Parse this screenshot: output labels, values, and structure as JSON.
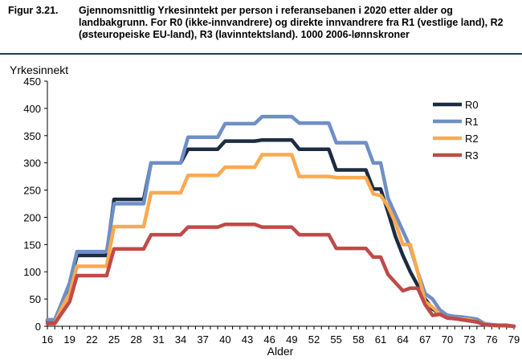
{
  "figure": {
    "number": "Figur 3.21.",
    "title": "Gjennomsnittlig Yrkesinntekt per person i referansebanen i 2020 etter alder og landbakgrunn. For R0 (ikke-innvandrere) og direkte innvandrere fra R1 (vestlige land), R2 (østeuropeiske EU-land), R3 (lavinntektsland). 1000 2006-lønnskroner"
  },
  "chart_data": {
    "type": "line",
    "title": "",
    "xlabel": "Alder",
    "ylabel": "Yrkesinnekt",
    "xlim": [
      16,
      79
    ],
    "ylim": [
      0,
      450
    ],
    "xticks": [
      16,
      19,
      22,
      25,
      28,
      31,
      34,
      37,
      40,
      43,
      46,
      49,
      52,
      55,
      58,
      61,
      64,
      67,
      70,
      73,
      76,
      79
    ],
    "yticks": [
      0,
      50,
      100,
      150,
      200,
      250,
      300,
      350,
      400,
      450
    ],
    "x": [
      16,
      17,
      18,
      19,
      20,
      21,
      22,
      23,
      24,
      25,
      26,
      27,
      28,
      29,
      30,
      31,
      32,
      33,
      34,
      35,
      36,
      37,
      38,
      39,
      40,
      41,
      42,
      43,
      44,
      45,
      46,
      47,
      48,
      49,
      50,
      51,
      52,
      53,
      54,
      55,
      56,
      57,
      58,
      59,
      60,
      61,
      62,
      63,
      64,
      65,
      66,
      67,
      68,
      69,
      70,
      71,
      72,
      73,
      74,
      75,
      76,
      77,
      78,
      79
    ],
    "series": [
      {
        "name": "R0",
        "color": "#1c2c42",
        "values": [
          10,
          10,
          40,
          75,
          130,
          130,
          130,
          130,
          130,
          233,
          233,
          233,
          233,
          233,
          300,
          300,
          300,
          300,
          300,
          325,
          325,
          325,
          325,
          325,
          340,
          340,
          340,
          340,
          340,
          342,
          342,
          342,
          342,
          342,
          325,
          325,
          325,
          325,
          325,
          287,
          287,
          287,
          287,
          287,
          252,
          252,
          210,
          165,
          130,
          100,
          75,
          50,
          32,
          22,
          20,
          15,
          12,
          10,
          8,
          3,
          2,
          1,
          1,
          0
        ]
      },
      {
        "name": "R1",
        "color": "#6e8fc6",
        "values": [
          12,
          12,
          45,
          80,
          137,
          137,
          137,
          137,
          137,
          225,
          225,
          225,
          225,
          225,
          300,
          300,
          300,
          300,
          300,
          347,
          347,
          347,
          347,
          347,
          372,
          372,
          372,
          372,
          372,
          385,
          385,
          385,
          385,
          385,
          373,
          373,
          373,
          373,
          373,
          337,
          337,
          337,
          337,
          337,
          300,
          300,
          235,
          205,
          175,
          145,
          100,
          60,
          50,
          30,
          20,
          18,
          17,
          15,
          13,
          5,
          3,
          2,
          2,
          0
        ]
      },
      {
        "name": "R2",
        "color": "#faaa50",
        "values": [
          5,
          5,
          35,
          60,
          110,
          110,
          110,
          110,
          110,
          183,
          183,
          183,
          183,
          183,
          245,
          245,
          245,
          245,
          245,
          277,
          277,
          277,
          277,
          277,
          292,
          292,
          292,
          292,
          292,
          315,
          315,
          315,
          315,
          315,
          275,
          275,
          275,
          275,
          275,
          273,
          273,
          273,
          273,
          273,
          243,
          240,
          220,
          190,
          150,
          150,
          100,
          45,
          35,
          22,
          15,
          14,
          13,
          12,
          8,
          4,
          2,
          1,
          1,
          0
        ]
      },
      {
        "name": "R3",
        "color": "#c04a48",
        "values": [
          5,
          5,
          25,
          45,
          93,
          93,
          93,
          93,
          93,
          142,
          142,
          142,
          142,
          142,
          168,
          168,
          168,
          168,
          168,
          182,
          182,
          182,
          182,
          182,
          187,
          187,
          187,
          187,
          187,
          182,
          182,
          182,
          182,
          182,
          168,
          168,
          168,
          168,
          168,
          143,
          143,
          143,
          143,
          143,
          127,
          127,
          95,
          80,
          65,
          70,
          70,
          40,
          20,
          22,
          15,
          14,
          12,
          10,
          8,
          3,
          2,
          1,
          1,
          0
        ]
      }
    ],
    "legend": [
      "R0",
      "R1",
      "R2",
      "R3"
    ],
    "legend_position": "top-right",
    "grid": false
  }
}
